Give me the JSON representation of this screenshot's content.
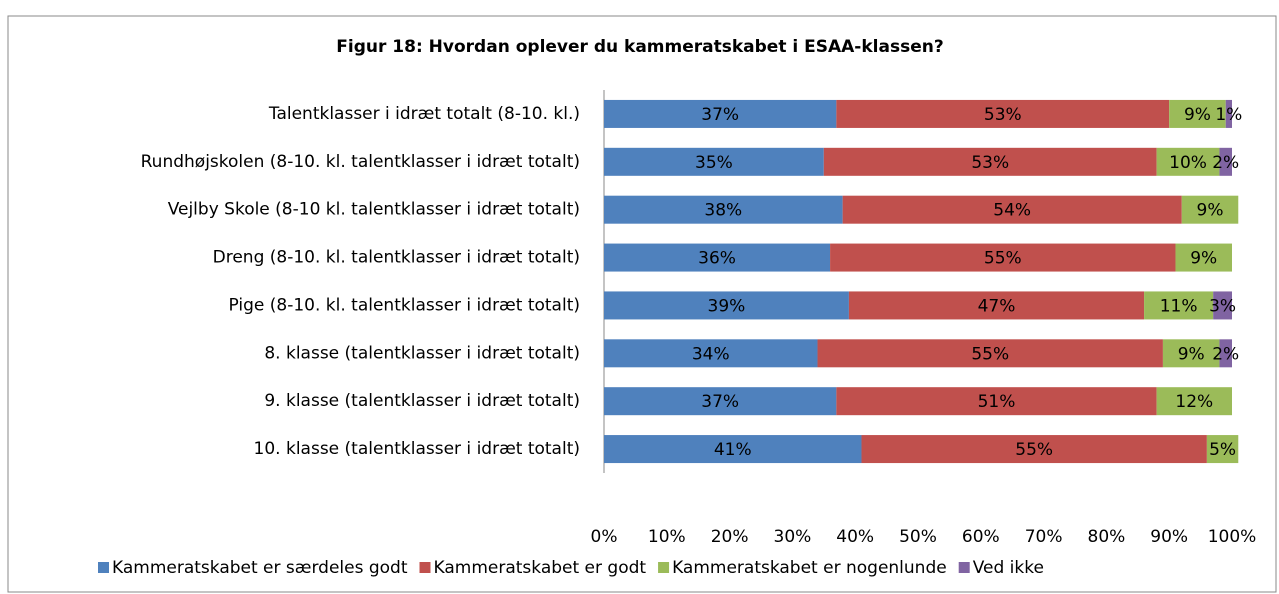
{
  "chart_data": {
    "type": "stacked_bar_horizontal",
    "title": "Figur 18: Hvordan oplever du kammeratskabet i ESAA-klassen?",
    "categories": [
      "Talentklasser i idræt totalt (8-10. kl.)",
      "Rundhøjskolen (8-10. kl. talentklasser i idræt totalt)",
      "Vejlby Skole (8-10 kl. talentklasser i idræt totalt)",
      "Dreng (8-10. kl. talentklasser i idræt totalt)",
      "Pige (8-10. kl. talentklasser i idræt totalt)",
      "8. klasse (talentklasser i idræt totalt)",
      "9. klasse (talentklasser i idræt totalt)",
      "10. klasse (talentklasser i idræt totalt)"
    ],
    "series": [
      {
        "name": "Kammeratskabet er særdeles godt",
        "color": "#4f81bd",
        "values": [
          37,
          35,
          38,
          36,
          39,
          34,
          37,
          41
        ],
        "value_labels": [
          "37%",
          "35%",
          "38%",
          "36%",
          "39%",
          "34%",
          "37%",
          "41%"
        ]
      },
      {
        "name": "Kammeratskabet er godt",
        "color": "#c0504d",
        "values": [
          53,
          53,
          54,
          55,
          47,
          55,
          51,
          55
        ],
        "value_labels": [
          "53%",
          "53%",
          "54%",
          "55%",
          "47%",
          "55%",
          "51%",
          "55%"
        ]
      },
      {
        "name": "Kammeratskabet er nogenlunde",
        "color": "#9bbb59",
        "values": [
          9,
          10,
          9,
          9,
          11,
          9,
          12,
          5
        ],
        "value_labels": [
          "9%",
          "10%",
          "9%",
          "9%",
          "11%",
          "9%",
          "12%",
          "5%"
        ]
      },
      {
        "name": "Ved ikke",
        "color": "#8064a2",
        "values": [
          1,
          2,
          null,
          null,
          3,
          2,
          null,
          null
        ],
        "value_labels": [
          "1%",
          "2%",
          null,
          null,
          "3%",
          "2%",
          null,
          null
        ]
      }
    ],
    "xlim": [
      0,
      100
    ],
    "xticks": [
      {
        "value": 0,
        "label": "0%"
      },
      {
        "value": 10,
        "label": "10%"
      },
      {
        "value": 20,
        "label": "20%"
      },
      {
        "value": 30,
        "label": "30%"
      },
      {
        "value": 40,
        "label": "40%"
      },
      {
        "value": 50,
        "label": "50%"
      },
      {
        "value": 60,
        "label": "60%"
      },
      {
        "value": 70,
        "label": "70%"
      },
      {
        "value": 80,
        "label": "80%"
      },
      {
        "value": 90,
        "label": "90%"
      },
      {
        "value": 100,
        "label": "100%"
      }
    ],
    "legend": "bottom"
  }
}
